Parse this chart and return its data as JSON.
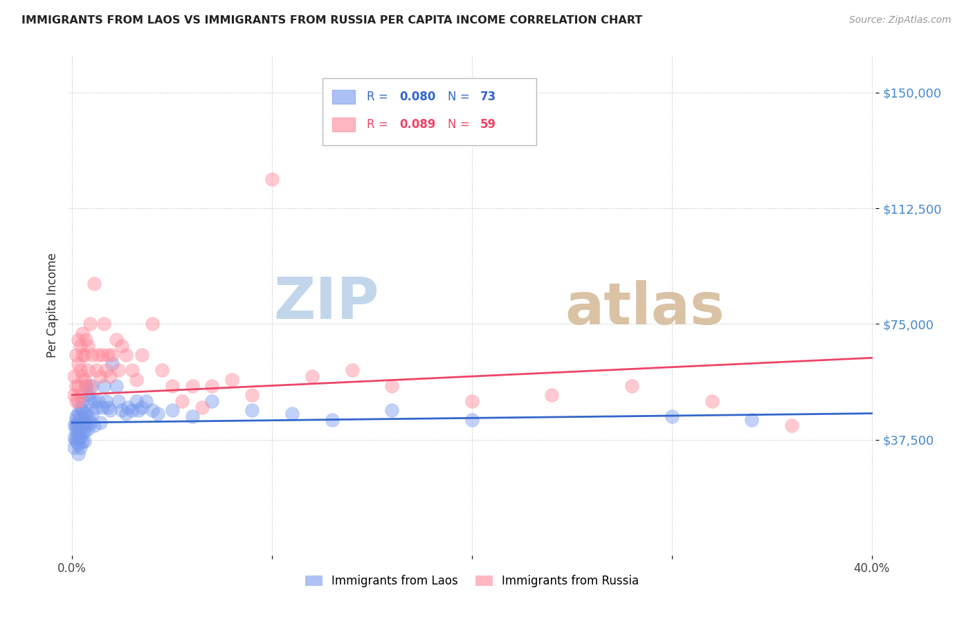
{
  "title": "IMMIGRANTS FROM LAOS VS IMMIGRANTS FROM RUSSIA PER CAPITA INCOME CORRELATION CHART",
  "source": "Source: ZipAtlas.com",
  "ylabel": "Per Capita Income",
  "ylim": [
    0,
    162000
  ],
  "xlim": [
    -0.002,
    0.402
  ],
  "laos_color": "#7799ee",
  "russia_color": "#ff8899",
  "trendline_laos_color": "#3366cc",
  "trendline_russia_color": "#ee4466",
  "watermark_zip_color": "#c5d8f0",
  "watermark_atlas_color": "#d8c5b0",
  "background_color": "#ffffff",
  "legend_box_color": "#dddddd",
  "ytick_color": "#4488cc",
  "laos_x": [
    0.001,
    0.001,
    0.001,
    0.002,
    0.002,
    0.002,
    0.002,
    0.002,
    0.002,
    0.002,
    0.003,
    0.003,
    0.003,
    0.003,
    0.003,
    0.003,
    0.004,
    0.004,
    0.004,
    0.004,
    0.004,
    0.005,
    0.005,
    0.005,
    0.005,
    0.005,
    0.006,
    0.006,
    0.006,
    0.006,
    0.007,
    0.007,
    0.007,
    0.008,
    0.008,
    0.008,
    0.009,
    0.009,
    0.01,
    0.01,
    0.011,
    0.011,
    0.012,
    0.013,
    0.014,
    0.015,
    0.016,
    0.017,
    0.018,
    0.019,
    0.02,
    0.022,
    0.023,
    0.025,
    0.027,
    0.028,
    0.03,
    0.032,
    0.033,
    0.035,
    0.037,
    0.04,
    0.043,
    0.05,
    0.06,
    0.07,
    0.09,
    0.11,
    0.13,
    0.16,
    0.2,
    0.3,
    0.34
  ],
  "laos_y": [
    42000,
    38000,
    35000,
    44000,
    40000,
    37000,
    42000,
    38000,
    45000,
    42000,
    38000,
    46000,
    43000,
    40000,
    36000,
    33000,
    48000,
    45000,
    41000,
    38000,
    35000,
    50000,
    47000,
    43000,
    40000,
    37000,
    46000,
    43000,
    40000,
    37000,
    55000,
    46000,
    42000,
    52000,
    45000,
    41000,
    50000,
    43000,
    55000,
    46000,
    50000,
    42000,
    48000,
    50000,
    43000,
    48000,
    55000,
    50000,
    48000,
    47000,
    62000,
    55000,
    50000,
    47000,
    46000,
    48000,
    47000,
    50000,
    47000,
    48000,
    50000,
    47000,
    46000,
    47000,
    45000,
    50000,
    47000,
    46000,
    44000,
    47000,
    44000,
    45000,
    44000
  ],
  "russia_x": [
    0.001,
    0.001,
    0.002,
    0.002,
    0.002,
    0.003,
    0.003,
    0.003,
    0.003,
    0.004,
    0.004,
    0.004,
    0.005,
    0.005,
    0.005,
    0.006,
    0.006,
    0.007,
    0.007,
    0.008,
    0.008,
    0.009,
    0.009,
    0.01,
    0.011,
    0.012,
    0.013,
    0.014,
    0.015,
    0.016,
    0.017,
    0.018,
    0.019,
    0.02,
    0.022,
    0.023,
    0.025,
    0.027,
    0.03,
    0.032,
    0.035,
    0.04,
    0.045,
    0.05,
    0.055,
    0.06,
    0.065,
    0.07,
    0.08,
    0.09,
    0.1,
    0.12,
    0.14,
    0.16,
    0.2,
    0.24,
    0.28,
    0.32,
    0.36
  ],
  "russia_y": [
    58000,
    52000,
    65000,
    55000,
    50000,
    70000,
    62000,
    55000,
    50000,
    68000,
    60000,
    52000,
    72000,
    65000,
    58000,
    65000,
    57000,
    70000,
    55000,
    68000,
    60000,
    75000,
    55000,
    65000,
    88000,
    60000,
    65000,
    58000,
    65000,
    75000,
    60000,
    65000,
    58000,
    65000,
    70000,
    60000,
    68000,
    65000,
    60000,
    57000,
    65000,
    75000,
    60000,
    55000,
    50000,
    55000,
    48000,
    55000,
    57000,
    52000,
    122000,
    58000,
    60000,
    55000,
    50000,
    52000,
    55000,
    50000,
    42000
  ],
  "trendline_laos_x0": 0.0,
  "trendline_laos_x1": 0.4,
  "trendline_laos_y0": 43000,
  "trendline_laos_y1": 46000,
  "trendline_russia_x0": 0.0,
  "trendline_russia_x1": 0.4,
  "trendline_russia_y0": 52000,
  "trendline_russia_y1": 64000
}
